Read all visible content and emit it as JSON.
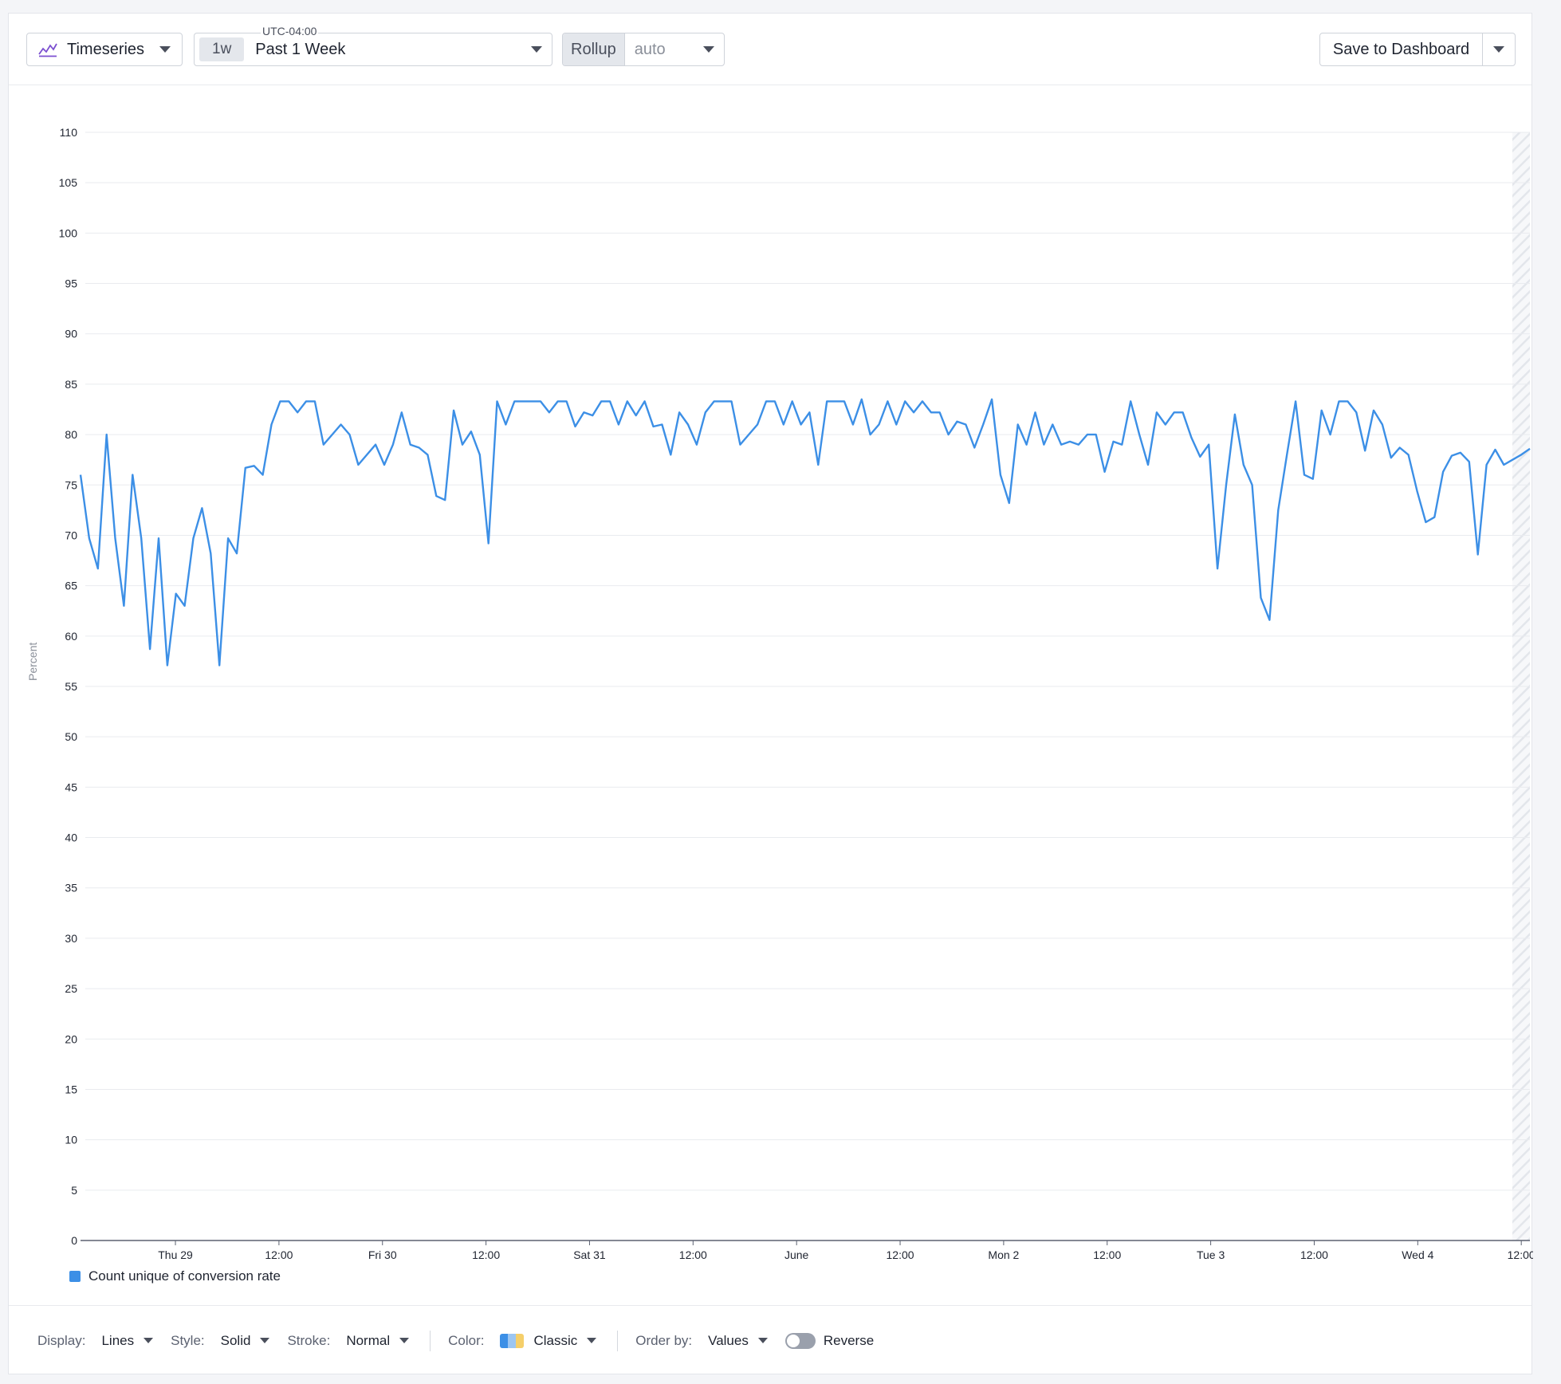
{
  "toolbar": {
    "viz_type": "Timeseries",
    "timezone": "UTC-04:00",
    "time_badge": "1w",
    "time_label": "Past 1 Week",
    "rollup_label": "Rollup",
    "rollup_value": "auto",
    "save_label": "Save to Dashboard"
  },
  "colors": {
    "series": "#3c8fe6",
    "grid": "#e9ebef",
    "axis_text": "#1f2430"
  },
  "chart_data": {
    "type": "line",
    "ylabel": "Percent",
    "ylim": [
      0,
      110
    ],
    "yticks": [
      0,
      5,
      10,
      15,
      20,
      25,
      30,
      35,
      40,
      45,
      50,
      55,
      60,
      65,
      70,
      75,
      80,
      85,
      90,
      95,
      100,
      105,
      110
    ],
    "xlim": [
      0,
      168
    ],
    "x_unit": "hours",
    "xticks": [
      {
        "x": 11,
        "label": "Thu 29"
      },
      {
        "x": 23,
        "label": "12:00"
      },
      {
        "x": 35,
        "label": "Fri 30"
      },
      {
        "x": 47,
        "label": "12:00"
      },
      {
        "x": 59,
        "label": "Sat 31"
      },
      {
        "x": 71,
        "label": "12:00"
      },
      {
        "x": 83,
        "label": "June"
      },
      {
        "x": 95,
        "label": "12:00"
      },
      {
        "x": 107,
        "label": "Mon 2"
      },
      {
        "x": 119,
        "label": "12:00"
      },
      {
        "x": 131,
        "label": "Tue 3"
      },
      {
        "x": 143,
        "label": "12:00"
      },
      {
        "x": 155,
        "label": "Wed 4"
      },
      {
        "x": 167,
        "label": "12:00"
      }
    ],
    "series": [
      {
        "name": "Count unique of conversion rate",
        "values": [
          76,
          69.7,
          66.7,
          80,
          69.7,
          63,
          76,
          69.7,
          58.7,
          69.7,
          57.1,
          64.2,
          63,
          69.7,
          72.7,
          68.2,
          57.1,
          69.7,
          68.2,
          76.7,
          76.9,
          76,
          81,
          83.3,
          83.3,
          82.2,
          83.3,
          83.3,
          79,
          80,
          81,
          80,
          77,
          78,
          79,
          77,
          79,
          82.2,
          79,
          78.7,
          78,
          73.9,
          73.5,
          82.4,
          79,
          80.3,
          78,
          69.2,
          83.3,
          81,
          83.3,
          83.3,
          83.3,
          83.3,
          82.2,
          83.3,
          83.3,
          80.8,
          82.2,
          81.9,
          83.3,
          83.3,
          81,
          83.3,
          81.9,
          83.3,
          80.8,
          81,
          78,
          82.2,
          81,
          79,
          82.2,
          83.3,
          83.3,
          83.3,
          79,
          80,
          81,
          83.3,
          83.3,
          81,
          83.3,
          81,
          82.2,
          77,
          83.3,
          83.3,
          83.3,
          81,
          83.5,
          80,
          81,
          83.3,
          81,
          83.3,
          82.2,
          83.3,
          82.2,
          82.2,
          80,
          81.3,
          81,
          78.7,
          81,
          83.5,
          76,
          73.2,
          81,
          79,
          82.2,
          79,
          81,
          79,
          79.3,
          79,
          80,
          80,
          76.3,
          79.3,
          79,
          83.3,
          80,
          77,
          82.2,
          81,
          82.2,
          82.2,
          79.7,
          77.8,
          79,
          66.7,
          75,
          82,
          77,
          75,
          63.8,
          61.6,
          72.5,
          78,
          83.3,
          76,
          75.6,
          82.4,
          80,
          83.3,
          83.3,
          82.2,
          78.4,
          82.4,
          81,
          77.7,
          78.7,
          78,
          74.4,
          71.3,
          71.8,
          76.3,
          77.9,
          78.2,
          77.3,
          68.1,
          77,
          78.5,
          77,
          77.5,
          78,
          78.6
        ]
      }
    ],
    "grid": true,
    "legend_position": "bottom-left"
  },
  "footer": {
    "display_label": "Display:",
    "display_value": "Lines",
    "style_label": "Style:",
    "style_value": "Solid",
    "stroke_label": "Stroke:",
    "stroke_value": "Normal",
    "color_label": "Color:",
    "color_value": "Classic",
    "order_label": "Order by:",
    "order_value": "Values",
    "reverse_label": "Reverse"
  }
}
